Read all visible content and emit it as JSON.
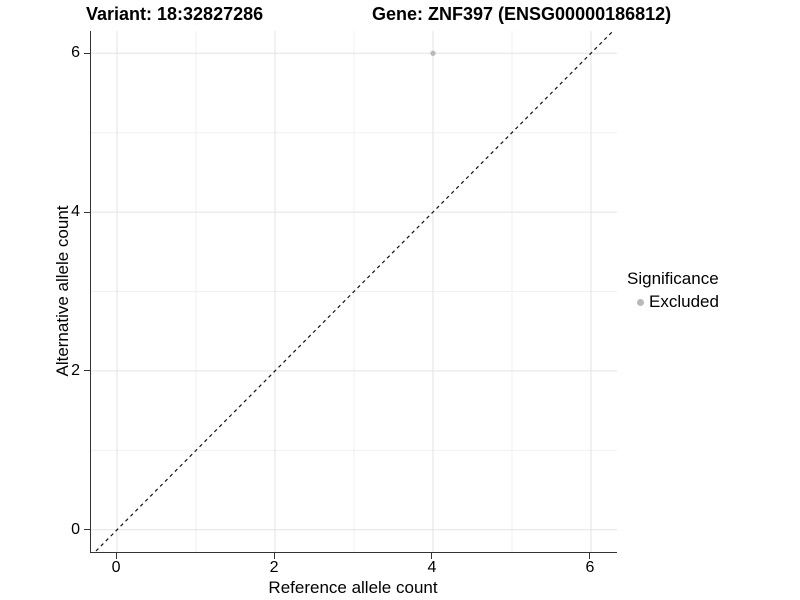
{
  "chart_data": {
    "type": "scatter",
    "title_left": "Variant: 18:32827286",
    "title_right": "Gene: ZNF397 (ENSG00000186812)",
    "xlabel": "Reference allele count",
    "ylabel": "Alternative allele count",
    "xlim": [
      -0.33,
      6.33
    ],
    "ylim": [
      -0.28,
      6.28
    ],
    "xticks": [
      0,
      2,
      4,
      6
    ],
    "yticks": [
      0,
      2,
      4,
      6
    ],
    "grid": {
      "major": [
        0,
        2,
        4,
        6
      ],
      "minor": [
        1,
        3,
        5
      ],
      "visible": true
    },
    "reference_line": {
      "type": "identity",
      "slope": 1,
      "intercept": 0,
      "style": "dashed",
      "color": "#111111"
    },
    "series": [
      {
        "name": "Excluded",
        "color": "#b8b8b8",
        "points": [
          {
            "x": 4,
            "y": 6
          }
        ],
        "point_radius": 2.6
      }
    ],
    "legend": {
      "position": "right",
      "title": "Significance",
      "items": [
        {
          "label": "Excluded",
          "color": "#b8b8b8"
        }
      ]
    },
    "colors": {
      "background": "#ffffff",
      "grid_major": "#e3e3e3",
      "grid_minor": "#f0f0f0",
      "axis_line": "#333333",
      "text": "#000000"
    }
  }
}
